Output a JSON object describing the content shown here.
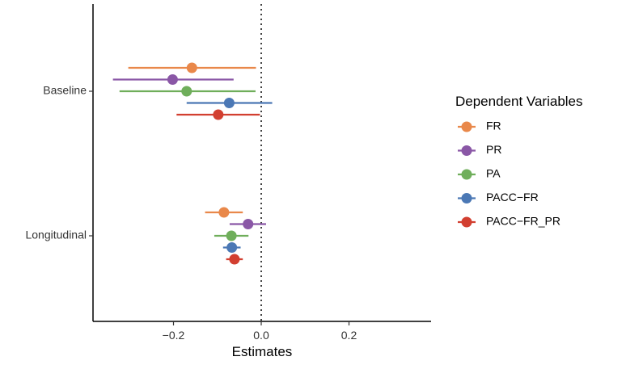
{
  "chart_data": {
    "type": "forest",
    "xlabel": "Estimates",
    "ylabel": "",
    "xlim": [
      -0.38,
      0.38
    ],
    "x_ticks": [
      -0.2,
      0.0,
      0.2
    ],
    "x_tick_labels": [
      "−0.2",
      "0.0",
      "0.2"
    ],
    "reference_line": 0,
    "groups": [
      "Baseline",
      "Longitudinal"
    ],
    "legend": {
      "title": "Dependent Variables",
      "position": "right"
    },
    "series": [
      {
        "name": "FR",
        "color": "#E9884A",
        "estimates": [
          -0.158,
          -0.085
        ],
        "ci_low": [
          -0.303,
          -0.128
        ],
        "ci_high": [
          -0.012,
          -0.042
        ]
      },
      {
        "name": "PR",
        "color": "#8A57A6",
        "estimates": [
          -0.202,
          -0.03
        ],
        "ci_low": [
          -0.338,
          -0.072
        ],
        "ci_high": [
          -0.063,
          0.011
        ]
      },
      {
        "name": "PA",
        "color": "#6FAE5B",
        "estimates": [
          -0.17,
          -0.068
        ],
        "ci_low": [
          -0.323,
          -0.107
        ],
        "ci_high": [
          -0.013,
          -0.029
        ]
      },
      {
        "name": "PACC−FR",
        "color": "#4B78B5",
        "estimates": [
          -0.073,
          -0.067
        ],
        "ci_low": [
          -0.17,
          -0.087
        ],
        "ci_high": [
          0.025,
          -0.047
        ]
      },
      {
        "name": "PACC−FR_PR",
        "color": "#D23F30",
        "estimates": [
          -0.098,
          -0.061
        ],
        "ci_low": [
          -0.193,
          -0.08
        ],
        "ci_high": [
          -0.003,
          -0.042
        ]
      }
    ]
  }
}
